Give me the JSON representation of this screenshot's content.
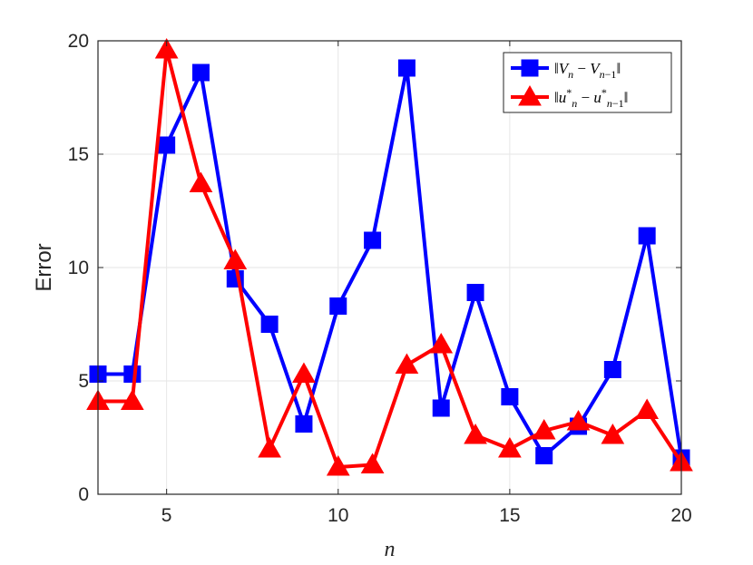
{
  "chart_data": {
    "type": "line",
    "xlabel": "n",
    "ylabel": "Error",
    "xlim": [
      3,
      20
    ],
    "ylim": [
      0,
      20
    ],
    "xticks": [
      5,
      10,
      15,
      20
    ],
    "yticks": [
      0,
      5,
      10,
      15,
      20
    ],
    "grid": true,
    "legend_position": "top-right",
    "x": [
      3,
      4,
      5,
      6,
      7,
      8,
      9,
      10,
      11,
      12,
      13,
      14,
      15,
      16,
      17,
      18,
      19,
      20
    ],
    "series": [
      {
        "name": "‖V_n − V_{n−1}‖",
        "color": "#0000ff",
        "marker": "square",
        "values": [
          5.3,
          5.3,
          15.4,
          18.6,
          9.5,
          7.5,
          3.1,
          8.3,
          11.2,
          18.8,
          3.8,
          8.9,
          4.3,
          1.7,
          3.0,
          5.5,
          11.4,
          1.6
        ]
      },
      {
        "name": "‖u*_n − u*_{n−1}‖",
        "color": "#ff0000",
        "marker": "triangle",
        "values": [
          4.1,
          4.1,
          19.6,
          13.7,
          10.3,
          2.0,
          5.3,
          1.2,
          1.3,
          5.7,
          6.6,
          2.6,
          2.0,
          2.8,
          3.2,
          2.6,
          3.7,
          1.4
        ]
      }
    ]
  }
}
